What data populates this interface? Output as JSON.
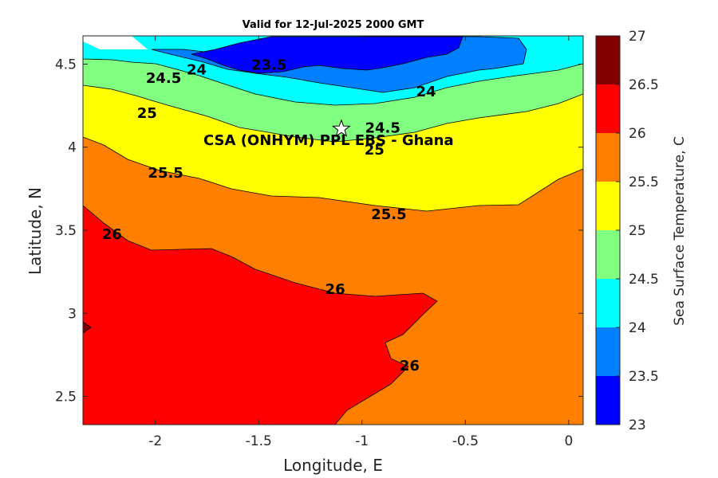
{
  "chart_data": {
    "type": "contour",
    "title": "Valid for 12-Jul-2025 2000 GMT",
    "xlabel": "Longitude, E",
    "ylabel": "Latitude, N",
    "xlim": [
      -2.35,
      0.07
    ],
    "ylim": [
      2.33,
      4.67
    ],
    "xticks": [
      -2,
      -1.5,
      -1,
      -0.5,
      0
    ],
    "yticks": [
      2.5,
      3,
      3.5,
      4,
      4.5
    ],
    "colorbar": {
      "label": "Sea Surface Temperature, C",
      "range": [
        23,
        27
      ],
      "ticks": [
        23,
        23.5,
        24,
        24.5,
        25,
        25.5,
        26,
        26.5,
        27
      ],
      "colors": [
        "#0000ff",
        "#0080ff",
        "#00ffff",
        "#80ff80",
        "#ffff00",
        "#ff8000",
        "#ff0000",
        "#800000"
      ]
    },
    "contour_levels": [
      23.5,
      24,
      24.5,
      25,
      25.5,
      26,
      26.5
    ],
    "contour_labels": [
      {
        "text": "23.5",
        "x": -1.45,
        "y": 4.5
      },
      {
        "text": "24",
        "x": -1.8,
        "y": 4.47
      },
      {
        "text": "24",
        "x": -0.69,
        "y": 4.34
      },
      {
        "text": "24.5",
        "x": -1.96,
        "y": 4.42
      },
      {
        "text": "24.5",
        "x": -0.9,
        "y": 4.12
      },
      {
        "text": "25",
        "x": -2.04,
        "y": 4.21
      },
      {
        "text": "25",
        "x": -0.94,
        "y": 3.99
      },
      {
        "text": "25.5",
        "x": -1.95,
        "y": 3.85
      },
      {
        "text": "25.5",
        "x": -0.87,
        "y": 3.6
      },
      {
        "text": "26",
        "x": -2.21,
        "y": 3.48
      },
      {
        "text": "26",
        "x": -1.13,
        "y": 3.15
      },
      {
        "text": "26",
        "x": -0.77,
        "y": 2.69
      }
    ],
    "site": {
      "name": "CSA (ONHYM) PPL EBS  - Ghana",
      "lon": -1.1,
      "lat": 4.11
    }
  }
}
